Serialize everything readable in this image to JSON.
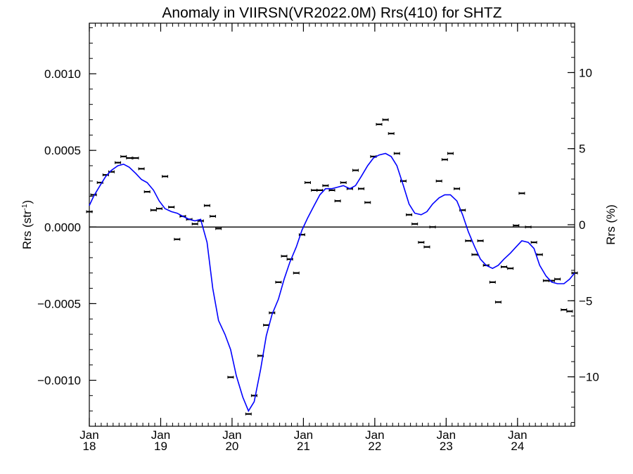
{
  "chart_data": {
    "type": "scatter",
    "title": "Anomaly in VIIRSN(VR2022.0M) Rrs(410) for SHTZ",
    "ylabel": "Rrs (str",
    "ylabel_sup": "-1",
    "ylabel_close": ")",
    "y2label": "Rrs (%)",
    "xlim": [
      2018.0,
      2024.8
    ],
    "ylim": [
      -0.0013,
      0.00133
    ],
    "y2lim": [
      -13.25,
      13.25
    ],
    "grid": false,
    "legend": "none",
    "colors": {
      "line": "#0000ff",
      "points": "#000000",
      "zero": "#000000"
    },
    "x_ticks": [
      {
        "x": 2018,
        "month": "Jan",
        "year": "18"
      },
      {
        "x": 2019,
        "month": "Jan",
        "year": "19"
      },
      {
        "x": 2020,
        "month": "Jan",
        "year": "20"
      },
      {
        "x": 2021,
        "month": "Jan",
        "year": "21"
      },
      {
        "x": 2022,
        "month": "Jan",
        "year": "22"
      },
      {
        "x": 2023,
        "month": "Jan",
        "year": "23"
      },
      {
        "x": 2024,
        "month": "Jan",
        "year": "24"
      }
    ],
    "y_ticks": [
      {
        "v": 0.001,
        "label": "0.0010"
      },
      {
        "v": 0.0005,
        "label": "0.0005"
      },
      {
        "v": 0.0,
        "label": "0.0000"
      },
      {
        "v": -0.0005,
        "label": "−0.0005"
      },
      {
        "v": -0.001,
        "label": "−0.0010"
      }
    ],
    "y2_ticks": [
      {
        "v": 10,
        "label": "10"
      },
      {
        "v": 5,
        "label": "5"
      },
      {
        "v": 0,
        "label": "0"
      },
      {
        "v": -5,
        "label": "−5"
      },
      {
        "v": -10,
        "label": "−10"
      }
    ],
    "series": [
      {
        "kind": "points",
        "points": [
          [
            2018.0,
            0.0001
          ],
          [
            2018.06,
            0.00021
          ],
          [
            2018.15,
            0.00029
          ],
          [
            2018.23,
            0.00034
          ],
          [
            2018.31,
            0.00036
          ],
          [
            2018.4,
            0.00042
          ],
          [
            2018.48,
            0.00046
          ],
          [
            2018.56,
            0.00045
          ],
          [
            2018.65,
            0.00045
          ],
          [
            2018.73,
            0.00038
          ],
          [
            2018.81,
            0.00023
          ],
          [
            2018.9,
            0.00011
          ],
          [
            2018.98,
            0.00012
          ],
          [
            2019.06,
            0.00033
          ],
          [
            2019.15,
            0.00013
          ],
          [
            2019.23,
            -8e-05
          ],
          [
            2019.31,
            7e-05
          ],
          [
            2019.4,
            5e-05
          ],
          [
            2019.48,
            2e-05
          ],
          [
            2019.56,
            4e-05
          ],
          [
            2019.65,
            0.00014
          ],
          [
            2019.73,
            7e-05
          ],
          [
            2019.81,
            -1e-05
          ],
          [
            2019.98,
            -0.00098
          ],
          [
            2020.23,
            -0.00122
          ],
          [
            2020.31,
            -0.0011
          ],
          [
            2020.4,
            -0.00084
          ],
          [
            2020.48,
            -0.00064
          ],
          [
            2020.56,
            -0.00056
          ],
          [
            2020.65,
            -0.00036
          ],
          [
            2020.73,
            -0.00019
          ],
          [
            2020.81,
            -0.00021
          ],
          [
            2020.9,
            -0.0003
          ],
          [
            2020.98,
            -5e-05
          ],
          [
            2021.06,
            0.00029
          ],
          [
            2021.15,
            0.00024
          ],
          [
            2021.23,
            0.00024
          ],
          [
            2021.31,
            0.00027
          ],
          [
            2021.4,
            0.00024
          ],
          [
            2021.48,
            0.00017
          ],
          [
            2021.56,
            0.00029
          ],
          [
            2021.65,
            0.00025
          ],
          [
            2021.73,
            0.00037
          ],
          [
            2021.81,
            0.00025
          ],
          [
            2021.9,
            0.00016
          ],
          [
            2021.98,
            0.00046
          ],
          [
            2022.06,
            0.00067
          ],
          [
            2022.15,
            0.0007
          ],
          [
            2022.23,
            0.00061
          ],
          [
            2022.31,
            0.00048
          ],
          [
            2022.4,
            0.0003
          ],
          [
            2022.48,
            8e-05
          ],
          [
            2022.56,
            2e-05
          ],
          [
            2022.65,
            -0.0001
          ],
          [
            2022.73,
            -0.00013
          ],
          [
            2022.81,
            0.0
          ],
          [
            2022.9,
            0.0003
          ],
          [
            2022.98,
            0.00044
          ],
          [
            2023.06,
            0.00048
          ],
          [
            2023.15,
            0.00025
          ],
          [
            2023.23,
            0.00011
          ],
          [
            2023.31,
            -9e-05
          ],
          [
            2023.4,
            -0.00018
          ],
          [
            2023.48,
            -9e-05
          ],
          [
            2023.56,
            -0.00025
          ],
          [
            2023.65,
            -0.00036
          ],
          [
            2023.73,
            -0.00049
          ],
          [
            2023.81,
            -0.00026
          ],
          [
            2023.9,
            -0.00027
          ],
          [
            2023.98,
            1e-05
          ],
          [
            2024.06,
            0.00022
          ],
          [
            2024.15,
            0.0
          ],
          [
            2024.23,
            -0.0001
          ],
          [
            2024.31,
            -0.00018
          ],
          [
            2024.4,
            -0.00035
          ],
          [
            2024.48,
            -0.00035
          ],
          [
            2024.56,
            -0.00034
          ],
          [
            2024.65,
            -0.00054
          ],
          [
            2024.73,
            -0.00055
          ],
          [
            2024.8,
            -0.0003
          ]
        ]
      },
      {
        "kind": "line",
        "points": [
          [
            2018.0,
            0.00014
          ],
          [
            2018.06,
            0.0002
          ],
          [
            2018.15,
            0.00027
          ],
          [
            2018.23,
            0.00033
          ],
          [
            2018.31,
            0.00037
          ],
          [
            2018.4,
            0.0004
          ],
          [
            2018.48,
            0.00041
          ],
          [
            2018.56,
            0.00039
          ],
          [
            2018.65,
            0.00035
          ],
          [
            2018.73,
            0.00031
          ],
          [
            2018.81,
            0.00029
          ],
          [
            2018.9,
            0.00024
          ],
          [
            2018.98,
            0.00017
          ],
          [
            2019.06,
            0.00012
          ],
          [
            2019.15,
            0.0001
          ],
          [
            2019.23,
            9e-05
          ],
          [
            2019.31,
            7e-05
          ],
          [
            2019.4,
            5e-05
          ],
          [
            2019.48,
            4e-05
          ],
          [
            2019.56,
            5e-05
          ],
          [
            2019.65,
            -0.0001
          ],
          [
            2019.73,
            -0.0004
          ],
          [
            2019.81,
            -0.00061
          ],
          [
            2019.9,
            -0.0007
          ],
          [
            2019.98,
            -0.0008
          ],
          [
            2020.06,
            -0.00097
          ],
          [
            2020.15,
            -0.00111
          ],
          [
            2020.23,
            -0.0012
          ],
          [
            2020.31,
            -0.00114
          ],
          [
            2020.4,
            -0.00093
          ],
          [
            2020.48,
            -0.00071
          ],
          [
            2020.56,
            -0.00057
          ],
          [
            2020.65,
            -0.00047
          ],
          [
            2020.73,
            -0.00034
          ],
          [
            2020.81,
            -0.00023
          ],
          [
            2020.9,
            -0.00013
          ],
          [
            2020.98,
            -2e-05
          ],
          [
            2021.06,
            6e-05
          ],
          [
            2021.15,
            0.00014
          ],
          [
            2021.23,
            0.00021
          ],
          [
            2021.31,
            0.00025
          ],
          [
            2021.4,
            0.00025
          ],
          [
            2021.48,
            0.00026
          ],
          [
            2021.56,
            0.00027
          ],
          [
            2021.65,
            0.00025
          ],
          [
            2021.73,
            0.00027
          ],
          [
            2021.81,
            0.00033
          ],
          [
            2021.9,
            0.0004
          ],
          [
            2021.98,
            0.00045
          ],
          [
            2022.06,
            0.00047
          ],
          [
            2022.15,
            0.00048
          ],
          [
            2022.23,
            0.00046
          ],
          [
            2022.31,
            0.0004
          ],
          [
            2022.4,
            0.00027
          ],
          [
            2022.48,
            0.00015
          ],
          [
            2022.56,
            9e-05
          ],
          [
            2022.65,
            8e-05
          ],
          [
            2022.73,
            0.0001
          ],
          [
            2022.81,
            0.00015
          ],
          [
            2022.9,
            0.00019
          ],
          [
            2022.98,
            0.00021
          ],
          [
            2023.06,
            0.00021
          ],
          [
            2023.15,
            0.00017
          ],
          [
            2023.23,
            8e-05
          ],
          [
            2023.31,
            -3e-05
          ],
          [
            2023.4,
            -0.00013
          ],
          [
            2023.48,
            -0.00021
          ],
          [
            2023.56,
            -0.00025
          ],
          [
            2023.65,
            -0.00027
          ],
          [
            2023.73,
            -0.00025
          ],
          [
            2023.81,
            -0.00021
          ],
          [
            2023.9,
            -0.00017
          ],
          [
            2023.98,
            -0.00013
          ],
          [
            2024.06,
            -9e-05
          ],
          [
            2024.15,
            -0.0001
          ],
          [
            2024.23,
            -0.00014
          ],
          [
            2024.31,
            -0.00025
          ],
          [
            2024.4,
            -0.00032
          ],
          [
            2024.48,
            -0.00036
          ],
          [
            2024.56,
            -0.00037
          ],
          [
            2024.65,
            -0.00037
          ],
          [
            2024.73,
            -0.00034
          ],
          [
            2024.8,
            -0.0003
          ]
        ]
      }
    ]
  }
}
